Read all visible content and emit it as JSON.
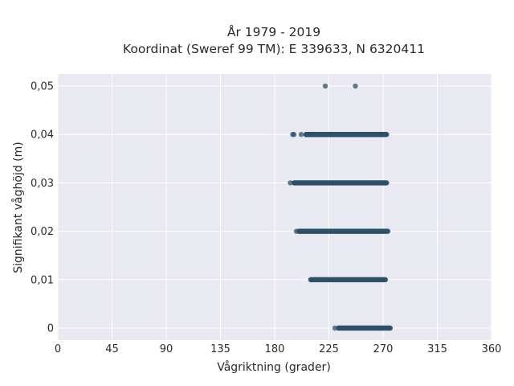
{
  "chart_data": {
    "type": "scatter",
    "title_line1": "År 1979 - 2019",
    "title_line2": "Koordinat (Sweref 99 TM): E 339633, N 6320411",
    "xlabel": "Vågriktning (grader)",
    "ylabel": "Signifikant våghöjd (m)",
    "xlim": [
      0,
      360
    ],
    "ylim": [
      -0.0025,
      0.0525
    ],
    "x_ticks": [
      0,
      45,
      90,
      135,
      180,
      225,
      270,
      315,
      360
    ],
    "x_tick_labels": [
      "0",
      "45",
      "90",
      "135",
      "180",
      "225",
      "270",
      "315",
      "360"
    ],
    "y_ticks": [
      0,
      0.01,
      0.02,
      0.03,
      0.04,
      0.05
    ],
    "y_tick_labels": [
      "0",
      "0,01",
      "0,02",
      "0,03",
      "0,04",
      "0,05"
    ],
    "grid": true,
    "background": "#e9e9f1",
    "marker_color": "#2f5066",
    "series": [
      {
        "bands": [
          {
            "y": 0.05,
            "points": [
              222,
              247
            ]
          },
          {
            "y": 0.04,
            "points": [
              195,
              196,
              202,
              206,
              209
            ],
            "dense_range": [
              206,
              273
            ]
          },
          {
            "y": 0.03,
            "points": [
              193,
              197,
              199
            ],
            "dense_range": [
              196,
              273
            ]
          },
          {
            "y": 0.02,
            "points": [
              198,
              201
            ],
            "dense_range": [
              200,
              274
            ]
          },
          {
            "y": 0.01,
            "points": [
              210,
              213
            ],
            "dense_range": [
              210,
              272
            ]
          },
          {
            "y": 0.0,
            "points": [
              230,
              233
            ],
            "dense_range": [
              233,
              276
            ]
          }
        ]
      }
    ]
  }
}
